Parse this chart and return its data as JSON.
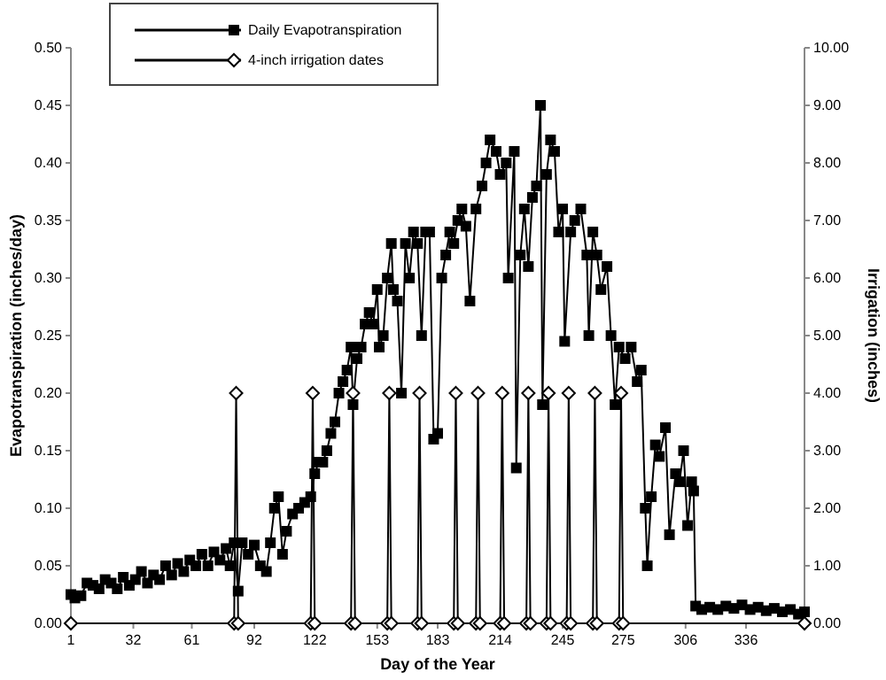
{
  "chart_data": {
    "type": "line",
    "xlabel": "Day of the Year",
    "ylabel": "Evapotranspiration (inches/day)",
    "y2label": "Irrigation (inches)",
    "xlim": [
      1,
      365
    ],
    "xticks": [
      1,
      32,
      61,
      92,
      122,
      153,
      183,
      214,
      245,
      275,
      306,
      336
    ],
    "ylim": [
      0,
      0.5
    ],
    "yticks": [
      {
        "value": 0,
        "label": "0.00"
      },
      {
        "value": 0.05,
        "label": "0.05"
      },
      {
        "value": 0.1,
        "label": "0.10"
      },
      {
        "value": 0.15,
        "label": "0.15"
      },
      {
        "value": 0.2,
        "label": "0.20"
      },
      {
        "value": 0.25,
        "label": "0.25"
      },
      {
        "value": 0.3,
        "label": "0.30"
      },
      {
        "value": 0.35,
        "label": "0.35"
      },
      {
        "value": 0.4,
        "label": "0.40"
      },
      {
        "value": 0.45,
        "label": "0.45"
      },
      {
        "value": 0.5,
        "label": "0.50"
      }
    ],
    "y2lim": [
      0,
      10
    ],
    "y2ticks": [
      {
        "value": 0,
        "label": "0.00"
      },
      {
        "value": 1,
        "label": "1.00"
      },
      {
        "value": 2,
        "label": "2.00"
      },
      {
        "value": 3,
        "label": "3.00"
      },
      {
        "value": 4,
        "label": "4.00"
      },
      {
        "value": 5,
        "label": "5.00"
      },
      {
        "value": 6,
        "label": "6.00"
      },
      {
        "value": 7,
        "label": "7.00"
      },
      {
        "value": 8,
        "label": "8.00"
      },
      {
        "value": 9,
        "label": "9.00"
      },
      {
        "value": 10,
        "label": "10.00"
      }
    ],
    "legend": "top left",
    "grid": false,
    "series": [
      {
        "name": "Daily Evapotranspiration",
        "color": "#000000",
        "marker": "square",
        "x": [
          1,
          3,
          6,
          9,
          12,
          15,
          18,
          21,
          24,
          27,
          30,
          33,
          36,
          39,
          42,
          45,
          48,
          51,
          54,
          57,
          60,
          63,
          66,
          69,
          72,
          75,
          78,
          80,
          82,
          84,
          86,
          89,
          92,
          95,
          98,
          100,
          102,
          104,
          106,
          108,
          111,
          114,
          117,
          120,
          122,
          124,
          126,
          128,
          130,
          132,
          134,
          136,
          138,
          140,
          141,
          143,
          145,
          147,
          149,
          151,
          153,
          154,
          156,
          158,
          160,
          161,
          163,
          165,
          167,
          169,
          171,
          173,
          175,
          177,
          179,
          181,
          183,
          185,
          187,
          189,
          191,
          193,
          195,
          197,
          199,
          202,
          205,
          207,
          209,
          212,
          214,
          217,
          218,
          221,
          222,
          224,
          226,
          228,
          230,
          232,
          234,
          235,
          237,
          239,
          241,
          243,
          245,
          246,
          249,
          251,
          254,
          257,
          258,
          260,
          262,
          264,
          267,
          269,
          271,
          273,
          276,
          279,
          282,
          284,
          286,
          287,
          289,
          291,
          293,
          296,
          298,
          301,
          303,
          305,
          307,
          309,
          310,
          311,
          314,
          318,
          322,
          326,
          330,
          334,
          338,
          342,
          346,
          350,
          354,
          358,
          362,
          365
        ],
        "values": [
          0.025,
          0.022,
          0.024,
          0.035,
          0.033,
          0.03,
          0.038,
          0.035,
          0.03,
          0.04,
          0.033,
          0.038,
          0.045,
          0.035,
          0.042,
          0.038,
          0.05,
          0.042,
          0.052,
          0.045,
          0.055,
          0.05,
          0.06,
          0.05,
          0.062,
          0.055,
          0.065,
          0.05,
          0.07,
          0.028,
          0.07,
          0.06,
          0.068,
          0.05,
          0.045,
          0.07,
          0.1,
          0.11,
          0.06,
          0.08,
          0.095,
          0.1,
          0.105,
          0.11,
          0.13,
          0.14,
          0.14,
          0.15,
          0.165,
          0.175,
          0.2,
          0.21,
          0.22,
          0.24,
          0.19,
          0.23,
          0.24,
          0.26,
          0.27,
          0.26,
          0.29,
          0.24,
          0.25,
          0.3,
          0.33,
          0.29,
          0.28,
          0.2,
          0.33,
          0.3,
          0.34,
          0.33,
          0.25,
          0.34,
          0.34,
          0.16,
          0.165,
          0.3,
          0.32,
          0.34,
          0.33,
          0.35,
          0.36,
          0.345,
          0.28,
          0.36,
          0.38,
          0.4,
          0.42,
          0.41,
          0.39,
          0.4,
          0.3,
          0.41,
          0.135,
          0.32,
          0.36,
          0.31,
          0.37,
          0.38,
          0.45,
          0.19,
          0.39,
          0.42,
          0.41,
          0.34,
          0.36,
          0.245,
          0.34,
          0.35,
          0.36,
          0.32,
          0.25,
          0.34,
          0.32,
          0.29,
          0.31,
          0.25,
          0.19,
          0.24,
          0.23,
          0.24,
          0.21,
          0.22,
          0.1,
          0.05,
          0.11,
          0.155,
          0.145,
          0.17,
          0.077,
          0.13,
          0.123,
          0.15,
          0.085,
          0.123,
          0.115,
          0.015,
          0.012,
          0.014,
          0.012,
          0.015,
          0.013,
          0.016,
          0.012,
          0.014,
          0.011,
          0.013,
          0.01,
          0.012,
          0.008,
          0.01
        ]
      },
      {
        "name": "4-inch irrigation dates",
        "color": "#000000",
        "marker": "diamond",
        "axis": "y2",
        "x": [
          1,
          82,
          83,
          84,
          120,
          121,
          122,
          140,
          141,
          142,
          158,
          159,
          160,
          173,
          174,
          175,
          191,
          192,
          193,
          202,
          203,
          204,
          214,
          215,
          216,
          227,
          228,
          229,
          237,
          238,
          239,
          247,
          248,
          249,
          260,
          261,
          262,
          273,
          274,
          275,
          365
        ],
        "values": [
          0,
          0,
          4,
          0,
          0,
          4,
          0,
          0,
          4,
          0,
          0,
          4,
          0,
          0,
          4,
          0,
          0,
          4,
          0,
          0,
          4,
          0,
          0,
          4,
          0,
          0,
          4,
          0,
          0,
          4,
          0,
          0,
          4,
          0,
          0,
          4,
          0,
          0,
          4,
          0,
          0
        ]
      }
    ]
  }
}
